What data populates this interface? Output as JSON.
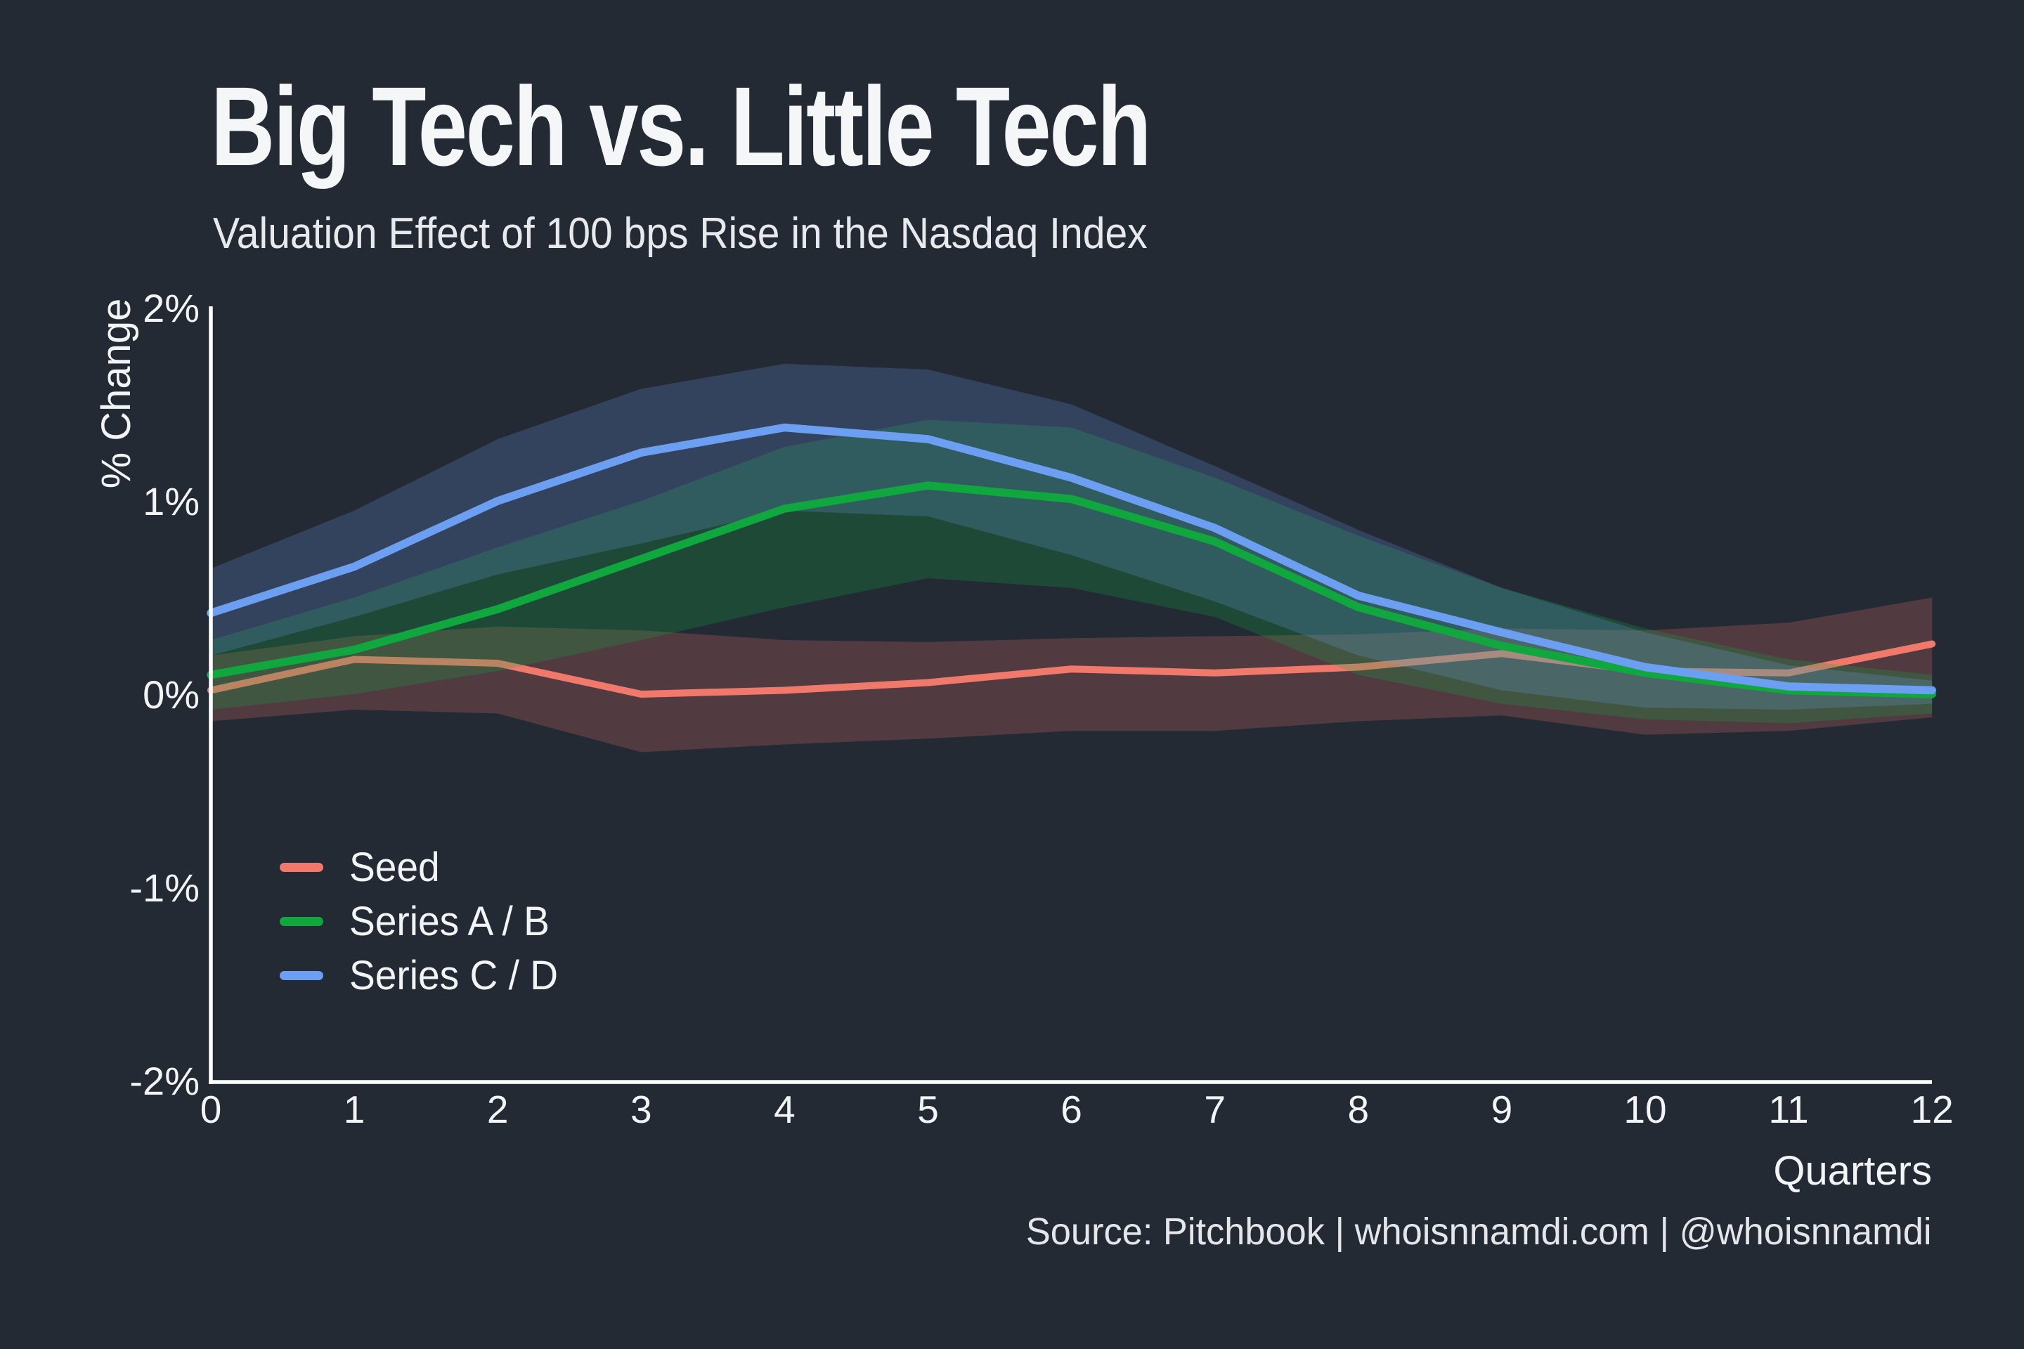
{
  "title": "Big Tech vs. Little Tech",
  "subtitle": "Valuation Effect of 100 bps Rise in the Nasdaq Index",
  "source": "Source: Pitchbook | whoisnnamdi.com | @whoisnnamdi",
  "colors": {
    "background": "#242A34",
    "text": "#F2F4F6",
    "axis": "#FFFFFF",
    "seed": "#F0796C",
    "series_ab": "#10A83E",
    "series_cd": "#6C9FF2"
  },
  "legend": {
    "items": [
      {
        "label": "Seed",
        "color": "#F0796C"
      },
      {
        "label": "Series A / B",
        "color": "#10A83E"
      },
      {
        "label": "Series C / D",
        "color": "#6C9FF2"
      }
    ]
  },
  "chart_data": {
    "type": "line",
    "title": "Big Tech vs. Little Tech",
    "subtitle": "Valuation Effect of 100 bps Rise in the Nasdaq Index",
    "xlabel": "Quarters",
    "ylabel": "% Change",
    "xlim": [
      0,
      12
    ],
    "ylim": [
      -2,
      2
    ],
    "grid": false,
    "legend_position": "inside lower-left",
    "x": [
      0,
      1,
      2,
      3,
      4,
      5,
      6,
      7,
      8,
      9,
      10,
      11,
      12
    ],
    "x_tick_labels": [
      "0",
      "1",
      "2",
      "3",
      "4",
      "5",
      "6",
      "7",
      "8",
      "9",
      "10",
      "11",
      "12"
    ],
    "y_ticks": [
      {
        "value": 2,
        "label": "2%"
      },
      {
        "value": 1,
        "label": "1%"
      },
      {
        "value": 0,
        "label": "0%"
      },
      {
        "value": -1,
        "label": "-1%"
      },
      {
        "value": -2,
        "label": "-2%"
      }
    ],
    "series": [
      {
        "name": "Seed",
        "color": "#F0796C",
        "band_opacity": 0.22,
        "line_width": 10,
        "values": [
          0.02,
          0.18,
          0.16,
          0.0,
          0.02,
          0.06,
          0.13,
          0.11,
          0.14,
          0.21,
          0.12,
          0.11,
          0.26
        ],
        "band_low": [
          -0.14,
          -0.08,
          -0.1,
          -0.3,
          -0.26,
          -0.23,
          -0.19,
          -0.19,
          -0.14,
          -0.11,
          -0.21,
          -0.19,
          -0.12
        ],
        "band_high": [
          0.2,
          0.3,
          0.35,
          0.33,
          0.28,
          0.27,
          0.29,
          0.3,
          0.31,
          0.34,
          0.33,
          0.37,
          0.5
        ]
      },
      {
        "name": "Series A / B",
        "color": "#10A83E",
        "band_opacity": 0.25,
        "line_width": 11.5,
        "values": [
          0.1,
          0.23,
          0.44,
          0.7,
          0.96,
          1.08,
          1.01,
          0.79,
          0.45,
          0.25,
          0.11,
          0.02,
          0.0
        ],
        "band_low": [
          -0.08,
          0.0,
          0.12,
          0.28,
          0.45,
          0.6,
          0.55,
          0.4,
          0.1,
          -0.05,
          -0.13,
          -0.15,
          -0.1
        ],
        "band_high": [
          0.28,
          0.5,
          0.76,
          1.0,
          1.28,
          1.42,
          1.38,
          1.12,
          0.82,
          0.55,
          0.34,
          0.18,
          0.1
        ]
      },
      {
        "name": "Series C / D",
        "color": "#6C9FF2",
        "band_opacity": 0.22,
        "line_width": 11.5,
        "values": [
          0.42,
          0.66,
          1.0,
          1.25,
          1.38,
          1.32,
          1.12,
          0.86,
          0.51,
          0.32,
          0.14,
          0.04,
          0.02
        ],
        "band_low": [
          0.2,
          0.4,
          0.62,
          0.78,
          0.95,
          0.92,
          0.72,
          0.48,
          0.2,
          0.02,
          -0.07,
          -0.08,
          -0.05
        ],
        "band_high": [
          0.65,
          0.95,
          1.32,
          1.58,
          1.71,
          1.68,
          1.5,
          1.18,
          0.85,
          0.55,
          0.32,
          0.15,
          0.07
        ]
      }
    ]
  }
}
